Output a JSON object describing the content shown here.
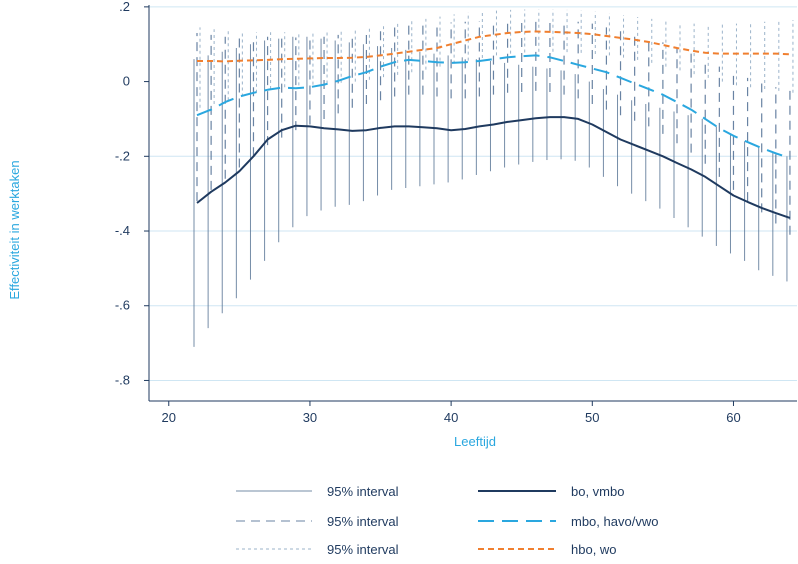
{
  "chart_data": {
    "type": "line",
    "xlabel": "Leeftijd",
    "ylabel": "Effectiviteit in werktaken",
    "xlim": [
      18.6,
      64.5
    ],
    "ylim": [
      -0.855,
      0.205
    ],
    "xticks": [
      20,
      30,
      40,
      50,
      60
    ],
    "xtick_labels": [
      "20",
      "30",
      "40",
      "50",
      "60"
    ],
    "yticks": [
      0.2,
      0,
      -0.2,
      -0.4,
      -0.6,
      -0.8
    ],
    "ytick_labels": [
      ".2",
      "0",
      "-.2",
      "-.4",
      "-.6",
      "-.8"
    ],
    "grid": "horizontal",
    "legend_placement": "bottom",
    "legend": {
      "ci_labels": [
        "95% interval",
        "95% interval",
        "95% interval"
      ],
      "series_labels": [
        "bo, vmbo",
        "mbo, havo/vwo",
        "hbo, wo"
      ]
    },
    "x": [
      22,
      23,
      24,
      25,
      26,
      27,
      28,
      29,
      30,
      31,
      32,
      33,
      34,
      35,
      36,
      37,
      38,
      39,
      40,
      41,
      42,
      43,
      44,
      45,
      46,
      47,
      48,
      49,
      50,
      51,
      52,
      53,
      54,
      55,
      56,
      57,
      58,
      59,
      60,
      61,
      62,
      63,
      64
    ],
    "series": [
      {
        "name": "bo, vmbo",
        "color": "#1f3a5f",
        "style": "solid",
        "values": [
          -0.325,
          -0.295,
          -0.27,
          -0.24,
          -0.2,
          -0.155,
          -0.13,
          -0.118,
          -0.12,
          -0.125,
          -0.128,
          -0.132,
          -0.13,
          -0.124,
          -0.12,
          -0.12,
          -0.122,
          -0.125,
          -0.13,
          -0.127,
          -0.12,
          -0.115,
          -0.108,
          -0.103,
          -0.098,
          -0.095,
          -0.095,
          -0.1,
          -0.115,
          -0.135,
          -0.155,
          -0.17,
          -0.185,
          -0.2,
          -0.218,
          -0.235,
          -0.255,
          -0.28,
          -0.305,
          -0.322,
          -0.338,
          -0.352,
          -0.365
        ],
        "lower": [
          -0.71,
          -0.66,
          -0.62,
          -0.58,
          -0.53,
          -0.48,
          -0.43,
          -0.39,
          -0.36,
          -0.345,
          -0.335,
          -0.33,
          -0.32,
          -0.305,
          -0.29,
          -0.285,
          -0.28,
          -0.275,
          -0.27,
          -0.262,
          -0.25,
          -0.24,
          -0.23,
          -0.222,
          -0.215,
          -0.21,
          -0.208,
          -0.212,
          -0.23,
          -0.255,
          -0.28,
          -0.3,
          -0.32,
          -0.34,
          -0.365,
          -0.39,
          -0.415,
          -0.44,
          -0.46,
          -0.48,
          -0.505,
          -0.52,
          -0.535
        ],
        "upper": [
          0.06,
          0.07,
          0.08,
          0.09,
          0.1,
          0.11,
          0.115,
          0.12,
          0.12,
          0.115,
          0.11,
          0.105,
          0.1,
          0.095,
          0.09,
          0.085,
          0.08,
          0.075,
          0.07,
          0.065,
          0.06,
          0.055,
          0.05,
          0.045,
          0.04,
          0.035,
          0.03,
          0.02,
          0.0,
          -0.02,
          -0.035,
          -0.05,
          -0.06,
          -0.07,
          -0.08,
          -0.09,
          -0.1,
          -0.12,
          -0.14,
          -0.16,
          -0.175,
          -0.19,
          -0.2
        ]
      },
      {
        "name": "mbo, havo/vwo",
        "color": "#2aa7df",
        "style": "longdash",
        "values": [
          -0.09,
          -0.075,
          -0.055,
          -0.04,
          -0.03,
          -0.022,
          -0.016,
          -0.018,
          -0.015,
          -0.008,
          0.002,
          0.015,
          0.025,
          0.04,
          0.052,
          0.058,
          0.055,
          0.052,
          0.05,
          0.052,
          0.055,
          0.06,
          0.065,
          0.068,
          0.07,
          0.065,
          0.055,
          0.045,
          0.035,
          0.025,
          0.01,
          -0.005,
          -0.02,
          -0.035,
          -0.055,
          -0.075,
          -0.1,
          -0.125,
          -0.145,
          -0.162,
          -0.178,
          -0.192,
          -0.205
        ],
        "lower": [
          -0.32,
          -0.29,
          -0.26,
          -0.23,
          -0.2,
          -0.17,
          -0.15,
          -0.13,
          -0.115,
          -0.1,
          -0.085,
          -0.07,
          -0.06,
          -0.05,
          -0.04,
          -0.035,
          -0.035,
          -0.04,
          -0.045,
          -0.045,
          -0.04,
          -0.035,
          -0.03,
          -0.028,
          -0.025,
          -0.028,
          -0.035,
          -0.045,
          -0.06,
          -0.075,
          -0.09,
          -0.105,
          -0.12,
          -0.14,
          -0.165,
          -0.19,
          -0.22,
          -0.255,
          -0.29,
          -0.32,
          -0.35,
          -0.38,
          -0.41
        ],
        "upper": [
          0.13,
          0.125,
          0.12,
          0.12,
          0.12,
          0.12,
          0.12,
          0.118,
          0.118,
          0.12,
          0.125,
          0.13,
          0.135,
          0.14,
          0.145,
          0.15,
          0.152,
          0.155,
          0.158,
          0.16,
          0.162,
          0.165,
          0.168,
          0.17,
          0.17,
          0.168,
          0.165,
          0.16,
          0.155,
          0.145,
          0.135,
          0.125,
          0.115,
          0.105,
          0.09,
          0.075,
          0.06,
          0.04,
          0.025,
          0.01,
          -0.005,
          -0.015,
          -0.025
        ]
      },
      {
        "name": "hbo, wo",
        "color": "#f07f2f",
        "style": "shortdash",
        "values": [
          0.055,
          0.055,
          0.054,
          0.056,
          0.057,
          0.058,
          0.06,
          0.061,
          0.062,
          0.063,
          0.063,
          0.064,
          0.066,
          0.07,
          0.075,
          0.08,
          0.085,
          0.09,
          0.1,
          0.11,
          0.12,
          0.125,
          0.13,
          0.133,
          0.134,
          0.133,
          0.132,
          0.13,
          0.127,
          0.122,
          0.117,
          0.112,
          0.106,
          0.098,
          0.09,
          0.083,
          0.077,
          0.075,
          0.075,
          0.075,
          0.075,
          0.075,
          0.073
        ],
        "lower": [
          -0.07,
          -0.06,
          -0.05,
          -0.04,
          -0.03,
          -0.02,
          -0.015,
          -0.01,
          -0.008,
          -0.005,
          -0.003,
          0.0,
          0.005,
          0.012,
          0.018,
          0.025,
          0.032,
          0.04,
          0.048,
          0.056,
          0.063,
          0.07,
          0.075,
          0.078,
          0.08,
          0.08,
          0.079,
          0.077,
          0.074,
          0.07,
          0.064,
          0.058,
          0.05,
          0.04,
          0.03,
          0.02,
          0.01,
          0.0,
          -0.01,
          -0.015,
          -0.02,
          -0.025,
          -0.03
        ],
        "upper": [
          0.145,
          0.14,
          0.135,
          0.133,
          0.132,
          0.132,
          0.132,
          0.133,
          0.134,
          0.135,
          0.136,
          0.138,
          0.142,
          0.148,
          0.155,
          0.162,
          0.168,
          0.174,
          0.18,
          0.185,
          0.188,
          0.19,
          0.192,
          0.193,
          0.193,
          0.193,
          0.192,
          0.19,
          0.187,
          0.183,
          0.178,
          0.173,
          0.168,
          0.163,
          0.158,
          0.155,
          0.153,
          0.153,
          0.155,
          0.157,
          0.16,
          0.162,
          0.165
        ]
      }
    ]
  }
}
